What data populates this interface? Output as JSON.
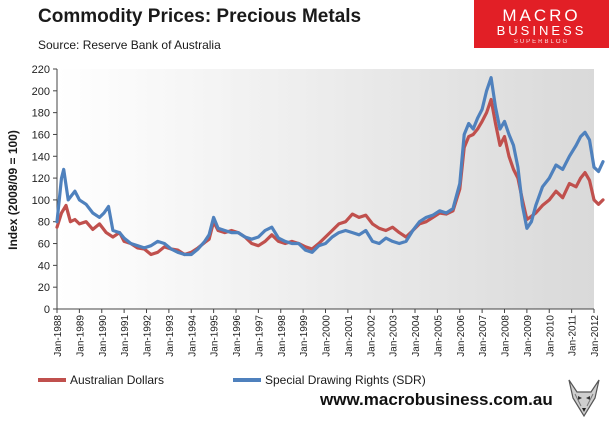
{
  "header": {
    "title": "Commodity Prices: Precious Metals",
    "source": "Source: Reserve Bank of Australia"
  },
  "brand": {
    "line1": "MACRO",
    "line2": "BUSINESS",
    "line3": "SUPERBLOG",
    "url": "www.macrobusiness.com.au",
    "color": "#e21f26"
  },
  "chart_data": {
    "type": "line",
    "title": "Commodity Prices: Precious Metals",
    "xlabel": "",
    "ylabel": "Index (2008/09  = 100)",
    "ylim": [
      0,
      220
    ],
    "yticks": [
      0,
      20,
      40,
      60,
      80,
      100,
      120,
      140,
      160,
      180,
      200,
      220
    ],
    "xlim": [
      1988,
      2012
    ],
    "xtick_labels": [
      "Jan-1988",
      "Jan-1989",
      "Jan-1990",
      "Jan-1991",
      "Jan-1992",
      "Jan-1993",
      "Jan-1994",
      "Jan-1995",
      "Jan-1996",
      "Jan-1997",
      "Jan-1998",
      "Jan-1999",
      "Jan-2000",
      "Jan-2001",
      "Jan-2002",
      "Jan-2003",
      "Jan-2004",
      "Jan-2005",
      "Jan-2006",
      "Jan-2007",
      "Jan-2008",
      "Jan-2009",
      "Jan-2010",
      "Jan-2011",
      "Jan-2012"
    ],
    "legend_position": "bottom",
    "series": [
      {
        "name": "Australian Dollars",
        "color": "#c0504d",
        "points": [
          [
            1988.0,
            75
          ],
          [
            1988.2,
            88
          ],
          [
            1988.4,
            95
          ],
          [
            1988.6,
            80
          ],
          [
            1988.8,
            82
          ],
          [
            1989.0,
            78
          ],
          [
            1989.3,
            80
          ],
          [
            1989.6,
            73
          ],
          [
            1989.9,
            78
          ],
          [
            1990.2,
            70
          ],
          [
            1990.5,
            66
          ],
          [
            1990.8,
            70
          ],
          [
            1991.0,
            62
          ],
          [
            1991.3,
            60
          ],
          [
            1991.6,
            56
          ],
          [
            1991.9,
            55
          ],
          [
            1992.2,
            50
          ],
          [
            1992.5,
            52
          ],
          [
            1992.8,
            57
          ],
          [
            1993.1,
            55
          ],
          [
            1993.4,
            54
          ],
          [
            1993.7,
            50
          ],
          [
            1994.0,
            52
          ],
          [
            1994.3,
            56
          ],
          [
            1994.6,
            61
          ],
          [
            1994.8,
            64
          ],
          [
            1995.0,
            80
          ],
          [
            1995.2,
            72
          ],
          [
            1995.5,
            70
          ],
          [
            1995.8,
            72
          ],
          [
            1996.1,
            70
          ],
          [
            1996.4,
            66
          ],
          [
            1996.7,
            60
          ],
          [
            1997.0,
            58
          ],
          [
            1997.3,
            62
          ],
          [
            1997.6,
            68
          ],
          [
            1997.9,
            62
          ],
          [
            1998.2,
            60
          ],
          [
            1998.5,
            62
          ],
          [
            1998.8,
            60
          ],
          [
            1999.1,
            57
          ],
          [
            1999.4,
            55
          ],
          [
            1999.7,
            60
          ],
          [
            2000.0,
            66
          ],
          [
            2000.3,
            72
          ],
          [
            2000.6,
            78
          ],
          [
            2000.9,
            80
          ],
          [
            2001.2,
            87
          ],
          [
            2001.5,
            84
          ],
          [
            2001.8,
            86
          ],
          [
            2002.1,
            78
          ],
          [
            2002.4,
            74
          ],
          [
            2002.7,
            72
          ],
          [
            2003.0,
            75
          ],
          [
            2003.3,
            70
          ],
          [
            2003.6,
            66
          ],
          [
            2003.9,
            72
          ],
          [
            2004.2,
            78
          ],
          [
            2004.5,
            80
          ],
          [
            2004.8,
            84
          ],
          [
            2005.1,
            88
          ],
          [
            2005.4,
            87
          ],
          [
            2005.7,
            90
          ],
          [
            2006.0,
            110
          ],
          [
            2006.2,
            148
          ],
          [
            2006.4,
            158
          ],
          [
            2006.6,
            160
          ],
          [
            2006.8,
            165
          ],
          [
            2007.0,
            172
          ],
          [
            2007.2,
            180
          ],
          [
            2007.4,
            192
          ],
          [
            2007.6,
            170
          ],
          [
            2007.8,
            150
          ],
          [
            2008.0,
            158
          ],
          [
            2008.2,
            140
          ],
          [
            2008.4,
            128
          ],
          [
            2008.6,
            120
          ],
          [
            2008.8,
            100
          ],
          [
            2009.0,
            82
          ],
          [
            2009.2,
            85
          ],
          [
            2009.4,
            88
          ],
          [
            2009.7,
            95
          ],
          [
            2010.0,
            100
          ],
          [
            2010.3,
            108
          ],
          [
            2010.6,
            102
          ],
          [
            2010.9,
            115
          ],
          [
            2011.2,
            112
          ],
          [
            2011.4,
            120
          ],
          [
            2011.6,
            125
          ],
          [
            2011.8,
            118
          ],
          [
            2012.0,
            100
          ],
          [
            2012.2,
            96
          ],
          [
            2012.4,
            100
          ]
        ]
      },
      {
        "name": "Special Drawing Rights (SDR)",
        "color": "#4f81bd",
        "points": [
          [
            1988.0,
            80
          ],
          [
            1988.2,
            120
          ],
          [
            1988.3,
            128
          ],
          [
            1988.5,
            100
          ],
          [
            1988.8,
            108
          ],
          [
            1989.0,
            100
          ],
          [
            1989.3,
            96
          ],
          [
            1989.6,
            88
          ],
          [
            1989.9,
            84
          ],
          [
            1990.1,
            88
          ],
          [
            1990.3,
            94
          ],
          [
            1990.5,
            72
          ],
          [
            1990.8,
            70
          ],
          [
            1991.0,
            65
          ],
          [
            1991.3,
            60
          ],
          [
            1991.6,
            58
          ],
          [
            1991.9,
            56
          ],
          [
            1992.2,
            58
          ],
          [
            1992.5,
            62
          ],
          [
            1992.8,
            60
          ],
          [
            1993.1,
            55
          ],
          [
            1993.4,
            52
          ],
          [
            1993.7,
            50
          ],
          [
            1994.0,
            50
          ],
          [
            1994.3,
            55
          ],
          [
            1994.6,
            62
          ],
          [
            1994.8,
            68
          ],
          [
            1995.0,
            84
          ],
          [
            1995.2,
            74
          ],
          [
            1995.5,
            72
          ],
          [
            1995.8,
            70
          ],
          [
            1996.1,
            70
          ],
          [
            1996.4,
            66
          ],
          [
            1996.7,
            64
          ],
          [
            1997.0,
            66
          ],
          [
            1997.3,
            72
          ],
          [
            1997.6,
            75
          ],
          [
            1997.9,
            65
          ],
          [
            1998.2,
            62
          ],
          [
            1998.5,
            60
          ],
          [
            1998.8,
            60
          ],
          [
            1999.1,
            54
          ],
          [
            1999.4,
            52
          ],
          [
            1999.7,
            58
          ],
          [
            2000.0,
            60
          ],
          [
            2000.3,
            66
          ],
          [
            2000.6,
            70
          ],
          [
            2000.9,
            72
          ],
          [
            2001.2,
            70
          ],
          [
            2001.5,
            68
          ],
          [
            2001.8,
            72
          ],
          [
            2002.1,
            62
          ],
          [
            2002.4,
            60
          ],
          [
            2002.7,
            65
          ],
          [
            2003.0,
            62
          ],
          [
            2003.3,
            60
          ],
          [
            2003.6,
            62
          ],
          [
            2003.9,
            72
          ],
          [
            2004.2,
            80
          ],
          [
            2004.5,
            84
          ],
          [
            2004.8,
            86
          ],
          [
            2005.1,
            90
          ],
          [
            2005.4,
            88
          ],
          [
            2005.7,
            92
          ],
          [
            2006.0,
            115
          ],
          [
            2006.2,
            160
          ],
          [
            2006.4,
            170
          ],
          [
            2006.6,
            165
          ],
          [
            2006.8,
            175
          ],
          [
            2007.0,
            183
          ],
          [
            2007.2,
            200
          ],
          [
            2007.4,
            212
          ],
          [
            2007.6,
            185
          ],
          [
            2007.8,
            165
          ],
          [
            2008.0,
            172
          ],
          [
            2008.2,
            160
          ],
          [
            2008.4,
            150
          ],
          [
            2008.6,
            130
          ],
          [
            2008.8,
            95
          ],
          [
            2009.0,
            74
          ],
          [
            2009.2,
            80
          ],
          [
            2009.4,
            95
          ],
          [
            2009.7,
            112
          ],
          [
            2010.0,
            120
          ],
          [
            2010.3,
            132
          ],
          [
            2010.6,
            128
          ],
          [
            2010.9,
            140
          ],
          [
            2011.2,
            150
          ],
          [
            2011.4,
            158
          ],
          [
            2011.6,
            162
          ],
          [
            2011.8,
            155
          ],
          [
            2012.0,
            130
          ],
          [
            2012.2,
            126
          ],
          [
            2012.4,
            135
          ]
        ]
      }
    ]
  }
}
